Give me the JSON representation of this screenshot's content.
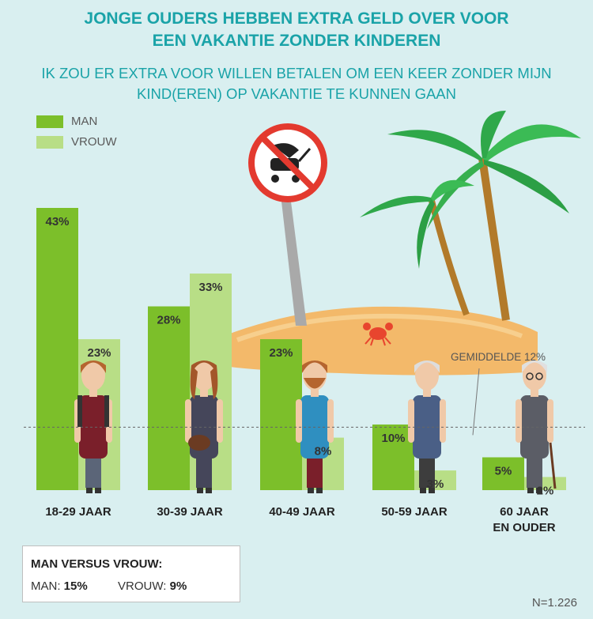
{
  "header": {
    "title_line1": "JONGE OUDERS HEBBEN EXTRA GELD OVER VOOR",
    "title_line2": "EEN VAKANTIE ZONDER KINDEREN",
    "subtitle_line1": "IK ZOU ER EXTRA VOOR WILLEN BETALEN OM EEN KEER ZONDER MIJN",
    "subtitle_line2": "KIND(EREN) OP VAKANTIE TE KUNNEN GAAN"
  },
  "colors": {
    "man": "#7cbf2a",
    "vrouw": "#b8de86",
    "background": "#d9eff0",
    "title": "#1aa3a8"
  },
  "chart_data": {
    "type": "bar",
    "categories": [
      [
        "18-29 JAAR"
      ],
      [
        "30-39 JAAR"
      ],
      [
        "40-49 JAAR"
      ],
      [
        "50-59 JAAR"
      ],
      [
        "60 JAAR",
        "EN OUDER"
      ]
    ],
    "series": [
      {
        "name": "MAN",
        "values": [
          43,
          28,
          23,
          10,
          5
        ],
        "labels": [
          "43%",
          "28%",
          "23%",
          "10%",
          "5%"
        ]
      },
      {
        "name": "VROUW",
        "values": [
          23,
          33,
          8,
          3,
          2
        ],
        "labels": [
          "23%",
          "33%",
          "8%",
          "3%",
          "2%"
        ]
      }
    ],
    "average": {
      "value": 12,
      "label": "GEMIDDELDE 12%"
    },
    "ylim": [
      0,
      43
    ],
    "legend_position": "top-left"
  },
  "summary": {
    "title": "MAN VERSUS VROUW:",
    "man_label": "MAN:",
    "man_value": "15%",
    "vrouw_label": "VROUW:",
    "vrouw_value": "9%"
  },
  "footnote": "N=1.226",
  "icons": [
    "no-stroller-sign-icon",
    "palm-tree-icon",
    "crab-icon",
    "island-icon"
  ]
}
